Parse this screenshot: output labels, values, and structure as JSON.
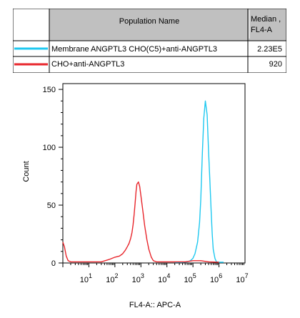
{
  "legend": {
    "header_name": "Population Name",
    "header_median_line1": "Median ,",
    "header_median_line2": "FL4-A",
    "rows": [
      {
        "name": "Membrane ANGPTL3 CHO(C5)+anti-ANGPTL3",
        "median": "2.23E5",
        "color": "#1ec8f0"
      },
      {
        "name": "CHO+anti-ANGPTL3",
        "median": "920",
        "color": "#e8262c"
      }
    ],
    "header_bg": "#c0c0c0"
  },
  "chart_data": {
    "type": "line",
    "title": "",
    "xlabel": "FL4-A:: APC-A",
    "ylabel": "Count",
    "x_scale": "log",
    "xlim": [
      1,
      10000000
    ],
    "ylim": [
      0,
      155
    ],
    "y_ticks": [
      0,
      50,
      100,
      150
    ],
    "x_tick_labels": [
      {
        "base": "10",
        "exp": "1",
        "value": 10
      },
      {
        "base": "10",
        "exp": "2",
        "value": 100
      },
      {
        "base": "10",
        "exp": "3",
        "value": 1000
      },
      {
        "base": "10",
        "exp": "4",
        "value": 10000
      },
      {
        "base": "10",
        "exp": "5",
        "value": 100000
      },
      {
        "base": "10",
        "exp": "6",
        "value": 1000000
      },
      {
        "base": "10",
        "exp": "7",
        "value": 10000000
      }
    ],
    "series": [
      {
        "name": "Membrane ANGPTL3 CHO(C5)+anti-ANGPTL3",
        "color": "#1ec8f0",
        "x": [
          20000,
          40000,
          60000,
          80000,
          100000,
          120000,
          150000,
          180000,
          200000,
          230000,
          260000,
          300000,
          350000,
          400000,
          450000,
          500000,
          550000,
          600000,
          700000,
          800000,
          1000000,
          1500000
        ],
        "y": [
          0,
          0.5,
          1,
          2,
          4,
          8,
          18,
          35,
          55,
          95,
          125,
          140,
          128,
          95,
          70,
          45,
          25,
          12,
          4,
          1,
          0,
          0
        ]
      },
      {
        "name": "CHO+anti-ANGPTL3",
        "color": "#e8262c",
        "x": [
          1,
          1.15,
          1.35,
          1.6,
          2,
          5,
          10,
          30,
          60,
          100,
          150,
          200,
          250,
          300,
          350,
          400,
          450,
          500,
          550,
          600,
          650,
          700,
          800,
          900,
          1000,
          1200,
          1400,
          1700,
          2000,
          2500,
          3000,
          4000,
          6000,
          10000,
          50000,
          100000,
          200000,
          400000,
          1000000
        ],
        "y": [
          18,
          14,
          6,
          2,
          1,
          1,
          1,
          1,
          3,
          5,
          6,
          8,
          11,
          14,
          17,
          21,
          26,
          33,
          42,
          52,
          62,
          68,
          70,
          66,
          58,
          44,
          32,
          20,
          12,
          5,
          2,
          1,
          1,
          1,
          1,
          2,
          2,
          1,
          0
        ]
      }
    ]
  }
}
